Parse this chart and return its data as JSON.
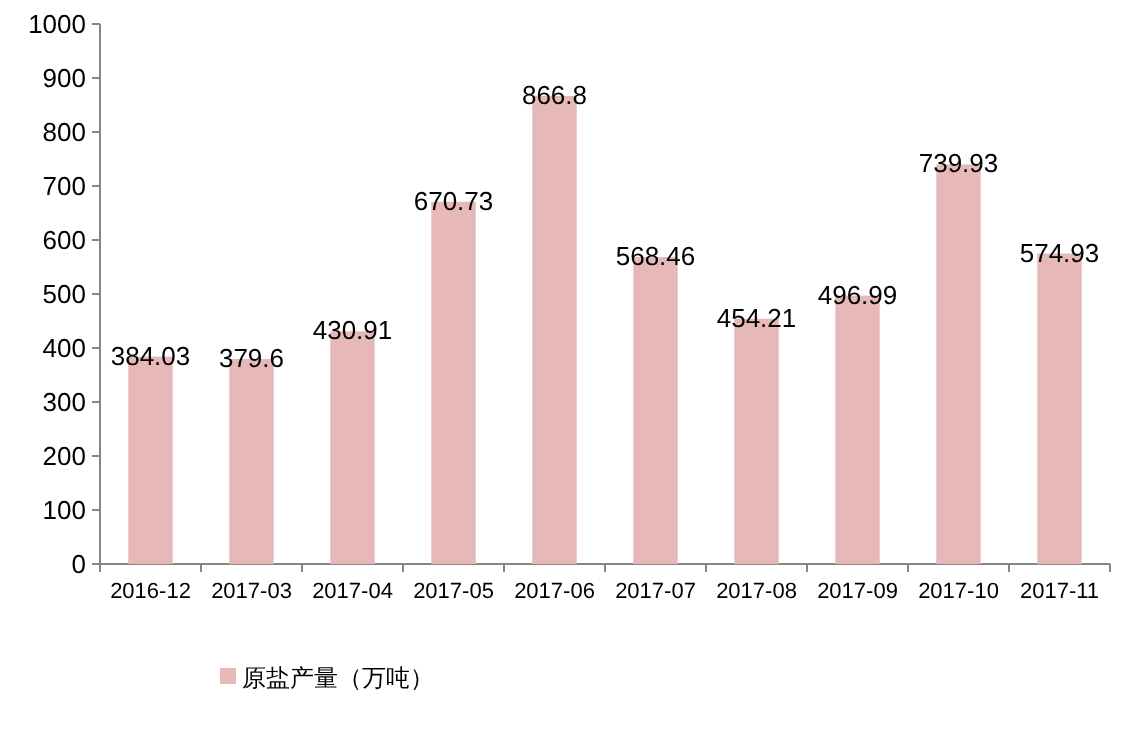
{
  "chart_data": {
    "type": "bar",
    "categories": [
      "2016-12",
      "2017-03",
      "2017-04",
      "2017-05",
      "2017-06",
      "2017-07",
      "2017-08",
      "2017-09",
      "2017-10",
      "2017-11"
    ],
    "series": [
      {
        "name": "原盐产量（万吨）",
        "color": "#e6b9b8",
        "values": [
          384.03,
          379.6,
          430.91,
          670.73,
          866.8,
          568.46,
          454.21,
          496.99,
          739.93,
          574.93
        ]
      }
    ],
    "ylim": [
      0,
      1000
    ],
    "yticks": [
      0,
      100,
      200,
      300,
      400,
      500,
      600,
      700,
      800,
      900,
      1000
    ],
    "data_labels": true,
    "legend": "bottom left"
  }
}
